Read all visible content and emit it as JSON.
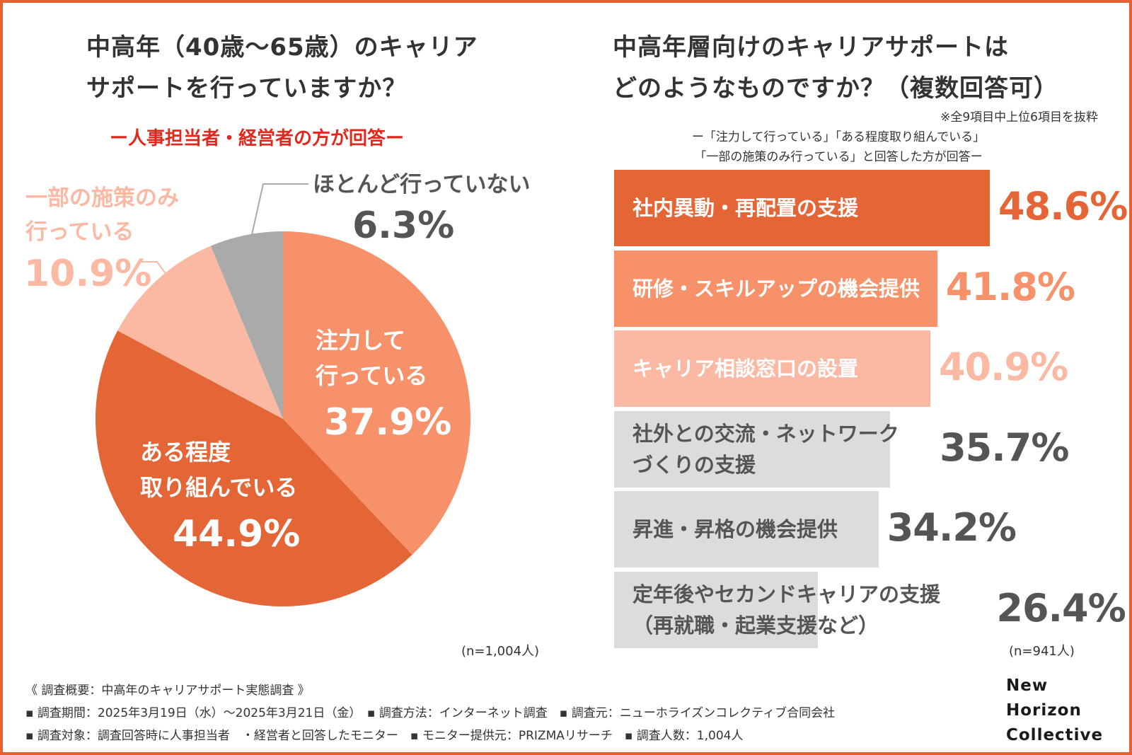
{
  "colors": {
    "frame": "#e8602f",
    "dark_orange": "#e46535",
    "mid_orange": "#f7916a",
    "light_orange": "#fbb9a3",
    "gray": "#aaaaaa",
    "light_gray": "#dcdcdc",
    "text_dark": "#555555",
    "red": "#e0281c",
    "white": "#ffffff"
  },
  "left_panel": {
    "title_lines": [
      "中高年（40歳〜65歳）のキャリア",
      "サポートを行っていますか？"
    ],
    "subtitle": "ー人事担当者・経営者の方が回答ー",
    "n_note": "(n=1,004人)"
  },
  "right_panel": {
    "title_lines": [
      "中高年層向けのキャリアサポートは",
      "どのようなものですか？（複数回答可）"
    ],
    "note": "※全9項目中上位6項目を抜粋",
    "condition_lines": [
      "ー「注力して行っている」「ある程度取り組んでいる」",
      "「一部の施策のみ行っている」と回答した方が回答ー"
    ],
    "n_note": "(n=941人)"
  },
  "chart_data": [
    {
      "type": "pie",
      "title": "中高年（40歳〜65歳）のキャリアサポートを行っていますか？",
      "start": "12 o'clock, clockwise",
      "slices": [
        {
          "label_lines": [
            "注力して",
            "行っている"
          ],
          "value": 37.9,
          "value_text": "37.9%",
          "color": "#f7916a"
        },
        {
          "label_lines": [
            "ある程度",
            "取り組んでいる"
          ],
          "value": 44.9,
          "value_text": "44.9%",
          "color": "#e46535"
        },
        {
          "label_lines": [
            "一部の施策のみ",
            "行っている"
          ],
          "value": 10.9,
          "value_text": "10.9%",
          "color": "#fbb9a3"
        },
        {
          "label_lines": [
            "ほとんど行っていない"
          ],
          "value": 6.3,
          "value_text": "6.3%",
          "color": "#aaaaaa"
        }
      ]
    },
    {
      "type": "bar",
      "orientation": "horizontal",
      "title": "中高年層向けのキャリアサポートはどのようなものですか？（複数回答可）",
      "xlim": [
        0,
        48.6
      ],
      "items": [
        {
          "label_lines": [
            "社内異動・再配置の支援"
          ],
          "value": 48.6,
          "value_text": "48.6%",
          "bar_color": "#e46535",
          "label_color": "#ffffff",
          "value_color": "#e46535"
        },
        {
          "label_lines": [
            "研修・スキルアップの機会提供"
          ],
          "value": 41.8,
          "value_text": "41.8%",
          "bar_color": "#f7916a",
          "label_color": "#ffffff",
          "value_color": "#f7916a"
        },
        {
          "label_lines": [
            "キャリア相談窓口の設置"
          ],
          "value": 40.9,
          "value_text": "40.9%",
          "bar_color": "#fbb9a3",
          "label_color": "#ffffff",
          "value_color": "#fbb9a3"
        },
        {
          "label_lines": [
            "社外との交流・ネットワーク",
            "づくりの支援"
          ],
          "value": 35.7,
          "value_text": "35.7%",
          "bar_color": "#dcdcdc",
          "label_color": "#555555",
          "value_color": "#555555"
        },
        {
          "label_lines": [
            "昇進・昇格の機会提供"
          ],
          "value": 34.2,
          "value_text": "34.2%",
          "bar_color": "#dcdcdc",
          "label_color": "#555555",
          "value_color": "#555555"
        },
        {
          "label_lines": [
            "定年後やセカンドキャリアの支援",
            "（再就職・起業支援など）"
          ],
          "value": 26.4,
          "value_text": "26.4%",
          "bar_color": "#dcdcdc",
          "label_color": "#555555",
          "value_color": "#555555"
        }
      ]
    }
  ],
  "footer": {
    "lines": [
      "《 調査概要：中高年のキャリアサポート実態調査 》",
      "▪ 調査期間：2025年3月19日（水）〜2025年3月21日（金）　▪ 調査方法：インターネット調査　▪ 調査元：ニューホライズンコレクティブ合同会社",
      "▪ 調査対象：調査回答時に人事担当者　・経営者と回答したモニター　▪ モニター提供元：PRIZMAリサーチ　▪ 調査人数：1,004人"
    ]
  },
  "logo": {
    "lines": [
      "New",
      "Horizon",
      "Collective"
    ]
  }
}
